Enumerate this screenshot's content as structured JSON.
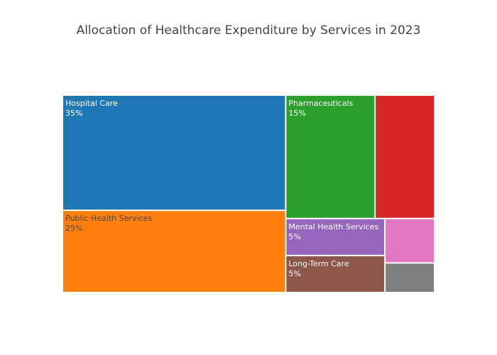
{
  "chart_data": {
    "type": "treemap",
    "title": "Allocation of Healthcare Expenditure by Services in 2023",
    "tiles": [
      {
        "name": "Hospital Care",
        "value_label": "35%",
        "value": 35,
        "color": "#1f77b4",
        "label_color": "#ffffff"
      },
      {
        "name": "Public Health Services",
        "value_label": "25%",
        "value": 25,
        "color": "#ff7f0e",
        "label_color": "#444444"
      },
      {
        "name": "Pharmaceuticals",
        "value_label": "15%",
        "value": 15,
        "color": "#2ca02c",
        "label_color": "#ffffff"
      },
      {
        "name": "",
        "value_label": "",
        "value": 10,
        "color": "#d62728",
        "label_color": "#ffffff"
      },
      {
        "name": "Mental Health Services",
        "value_label": "5%",
        "value": 5,
        "color": "#9467bd",
        "label_color": "#ffffff"
      },
      {
        "name": "Long-Term Care",
        "value_label": "5%",
        "value": 5,
        "color": "#8c564b",
        "label_color": "#ffffff"
      },
      {
        "name": "",
        "value_label": "",
        "value": 3,
        "color": "#e377c2",
        "label_color": "#ffffff"
      },
      {
        "name": "",
        "value_label": "",
        "value": 2,
        "color": "#7f7f7f",
        "label_color": "#ffffff"
      }
    ]
  }
}
